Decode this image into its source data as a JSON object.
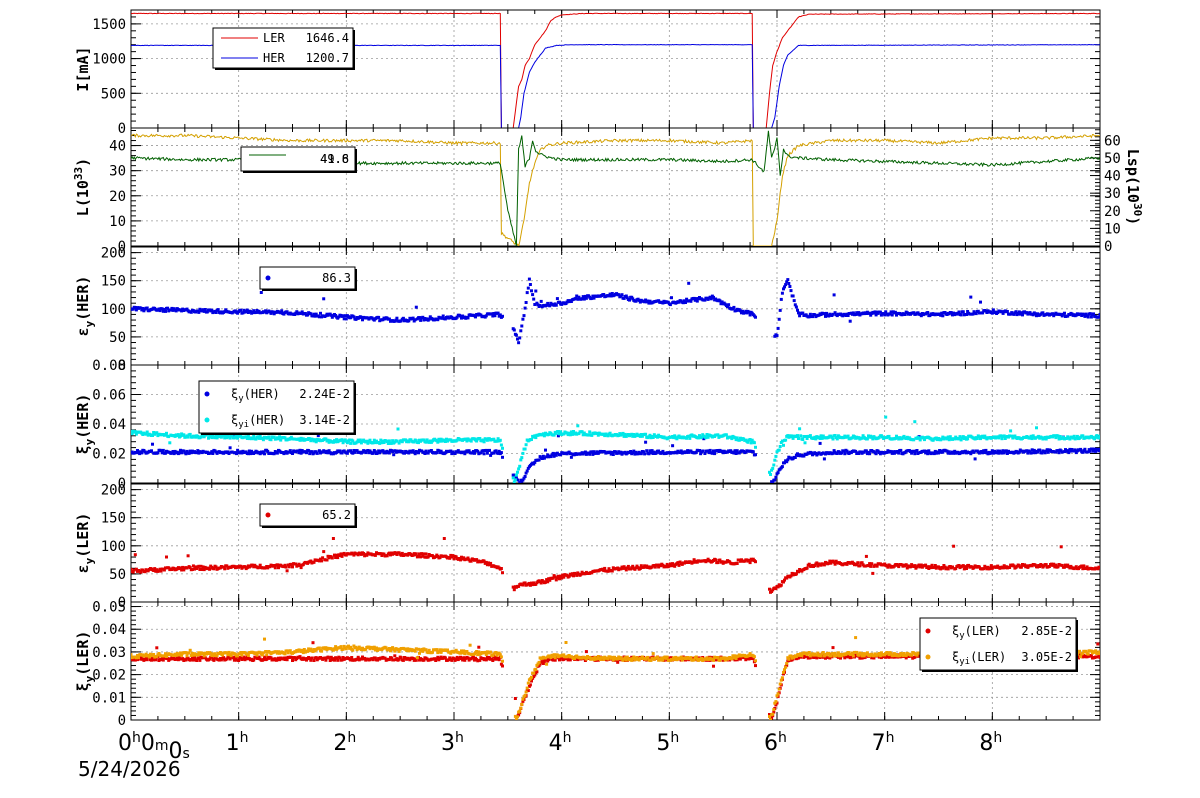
{
  "chart_data": {
    "type": "line",
    "date": "5/24/2026",
    "x_unit": "hours",
    "x_ticks": [
      {
        "value": 0,
        "main": "0",
        "parts": [
          [
            "h",
            "0"
          ],
          [
            "m",
            "0"
          ],
          [
            "s",
            ""
          ]
        ]
      },
      {
        "value": 1,
        "main": "1",
        "parts": [
          [
            "h",
            ""
          ]
        ]
      },
      {
        "value": 2,
        "main": "2",
        "parts": [
          [
            "h",
            ""
          ]
        ]
      },
      {
        "value": 3,
        "main": "3",
        "parts": [
          [
            "h",
            ""
          ]
        ]
      },
      {
        "value": 4,
        "main": "4",
        "parts": [
          [
            "h",
            ""
          ]
        ]
      },
      {
        "value": 5,
        "main": "5",
        "parts": [
          [
            "h",
            ""
          ]
        ]
      },
      {
        "value": 6,
        "main": "6",
        "parts": [
          [
            "h",
            ""
          ]
        ]
      },
      {
        "value": 7,
        "main": "7",
        "parts": [
          [
            "h",
            ""
          ]
        ]
      },
      {
        "value": 8,
        "main": "8",
        "parts": [
          [
            "h",
            ""
          ]
        ]
      }
    ],
    "xlim": [
      0,
      9.0
    ],
    "panels": [
      {
        "id": "current",
        "ylabel": "I[mA]",
        "ylim": [
          0,
          1700
        ],
        "yticks": [
          0,
          500,
          1000,
          1500
        ],
        "style": "line",
        "legend": {
          "position": "top-left",
          "entries": [
            {
              "name": "LER",
              "value": "1646.4",
              "color": "#e00000"
            },
            {
              "name": "HER",
              "value": "1200.7",
              "color": "#0000e0"
            }
          ]
        },
        "series": [
          {
            "name": "LER",
            "color": "#e00000",
            "x": [
              0,
              3.43,
              3.44,
              3.46,
              3.55,
              3.6,
              3.63,
              3.66,
              3.7,
              3.75,
              3.8,
              3.85,
              3.9,
              3.95,
              4.0,
              4.2,
              5.77,
              5.78,
              5.8,
              5.9,
              5.93,
              5.96,
              6.0,
              6.05,
              6.1,
              6.15,
              6.2,
              6.3,
              9.0
            ],
            "y": [
              1650,
              1650,
              0,
              0,
              0,
              600,
              700,
              900,
              1000,
              1200,
              1300,
              1400,
              1550,
              1600,
              1630,
              1650,
              1650,
              0,
              0,
              0,
              500,
              900,
              1100,
              1300,
              1400,
              1500,
              1600,
              1640,
              1650
            ]
          },
          {
            "name": "HER",
            "color": "#0000e0",
            "x": [
              0,
              3.43,
              3.44,
              3.46,
              3.6,
              3.62,
              3.65,
              3.7,
              3.75,
              3.8,
              3.85,
              3.95,
              4.1,
              5.77,
              5.78,
              5.8,
              5.95,
              5.98,
              6.02,
              6.06,
              6.1,
              6.2,
              9.0
            ],
            "y": [
              1190,
              1190,
              0,
              0,
              0,
              150,
              500,
              800,
              950,
              1050,
              1150,
              1190,
              1200,
              1200,
              0,
              0,
              0,
              150,
              600,
              900,
              1050,
              1190,
              1200
            ]
          }
        ]
      },
      {
        "id": "luminosity",
        "ylabel": "L(10",
        "ylabel_sup": "33",
        "ylabel_end": ")",
        "ylim": [
          0,
          47
        ],
        "yticks": [
          0,
          10,
          20,
          30,
          40
        ],
        "ylabel2": "Lsp(10",
        "ylabel2_sup": "30",
        "ylabel2_end": ")",
        "ylim2": [
          0,
          67
        ],
        "yticks2": [
          0,
          10,
          20,
          30,
          40,
          50,
          60
        ],
        "style": "line",
        "legend": {
          "position": "top-left",
          "entries": [
            {
              "name": "",
              "value": "41.8",
              "color": "#d4a000"
            },
            {
              "name": "",
              "value": "49.6",
              "color": "#006000"
            }
          ]
        },
        "series": [
          {
            "name": "L",
            "color": "#d4a000",
            "axis": "left",
            "x": [
              0,
              0.5,
              1.0,
              1.5,
              2.0,
              2.5,
              3.0,
              3.43,
              3.44,
              3.6,
              3.65,
              3.7,
              3.75,
              3.8,
              3.85,
              4.0,
              4.5,
              5.0,
              5.5,
              5.77,
              5.78,
              5.95,
              6.0,
              6.05,
              6.1,
              6.2,
              6.5,
              7.0,
              7.5,
              8.0,
              8.5,
              9.0
            ],
            "y": [
              44,
              44,
              43,
              42,
              42,
              42,
              41,
              41,
              5,
              0,
              10,
              25,
              33,
              38,
              40,
              41,
              42,
              42,
              41,
              42,
              0,
              0,
              10,
              28,
              36,
              40,
              42,
              42,
              41,
              43,
              43,
              44
            ]
          },
          {
            "name": "Lsp",
            "color": "#006000",
            "axis": "right",
            "x": [
              0,
              0.5,
              1.0,
              1.5,
              2.0,
              2.5,
              3.0,
              3.43,
              3.5,
              3.58,
              3.6,
              3.63,
              3.66,
              3.7,
              3.73,
              3.76,
              3.8,
              3.9,
              4.0,
              4.5,
              5.0,
              5.5,
              5.77,
              5.88,
              5.92,
              5.95,
              5.98,
              6.0,
              6.03,
              6.06,
              6.1,
              6.2,
              6.5,
              7.0,
              7.5,
              8.0,
              8.5,
              9.0
            ],
            "y": [
              50,
              49,
              49,
              48,
              47,
              47,
              47,
              47,
              20,
              0,
              55,
              62,
              45,
              50,
              60,
              54,
              52,
              50,
              49,
              49,
              49,
              48,
              49,
              42,
              65,
              50,
              55,
              62,
              40,
              55,
              51,
              50,
              49,
              48,
              47,
              46,
              48,
              50
            ]
          }
        ]
      },
      {
        "id": "eps_her",
        "ylabel": "ε",
        "ylabel_sub": "y",
        "ylabel_end": "(HER)",
        "ylim": [
          0,
          210
        ],
        "yticks": [
          0,
          50,
          100,
          150,
          200
        ],
        "style": "scatter",
        "legend": {
          "position": "top-left",
          "entries": [
            {
              "name": "",
              "value": "86.3",
              "color": "#0000e0"
            }
          ]
        },
        "series": [
          {
            "name": "eps_y HER",
            "color": "#0000e0",
            "gaps": [
              [
                3.45,
                3.55
              ],
              [
                5.8,
                5.98
              ]
            ],
            "x": [
              0,
              0.5,
              1.0,
              1.5,
              2.0,
              2.5,
              3.0,
              3.43,
              3.56,
              3.6,
              3.65,
              3.7,
              3.75,
              3.8,
              4.0,
              4.2,
              4.5,
              4.7,
              5.0,
              5.2,
              5.4,
              5.6,
              5.78,
              6.0,
              6.05,
              6.1,
              6.15,
              6.2,
              6.3,
              6.5,
              7.0,
              7.5,
              8.0,
              8.5,
              9.0
            ],
            "y": [
              100,
              97,
              95,
              93,
              85,
              80,
              85,
              90,
              60,
              40,
              90,
              150,
              110,
              105,
              110,
              120,
              125,
              115,
              110,
              115,
              120,
              100,
              90,
              50,
              130,
              150,
              120,
              90,
              88,
              90,
              92,
              90,
              95,
              90,
              88
            ]
          }
        ]
      },
      {
        "id": "xi_her",
        "ylabel": "ξ",
        "ylabel_sub": "y",
        "ylabel_end": "(HER)",
        "ylim": [
          0,
          0.08
        ],
        "yticks": [
          0,
          0.02,
          0.04,
          0.06,
          0.08
        ],
        "ytick_labels": [
          "0",
          "0.02",
          "0.04",
          "0.06",
          "0.08"
        ],
        "style": "scatter",
        "legend": {
          "position": "top-left",
          "entries": [
            {
              "name": "ξ",
              "sub": "y",
              "tail": "(HER)",
              "value": "2.24E-2",
              "color": "#0000e0"
            },
            {
              "name": "ξ",
              "sub": "yi",
              "tail": "(HER)",
              "value": "3.14E-2",
              "color": "#00e8e8"
            }
          ]
        },
        "series": [
          {
            "name": "xi_y HER",
            "color": "#0000e0",
            "gaps": [
              [
                3.45,
                3.55
              ],
              [
                5.8,
                5.95
              ]
            ],
            "x": [
              0,
              1.0,
              2.0,
              3.0,
              3.43,
              3.6,
              3.65,
              3.7,
              3.75,
              3.8,
              3.9,
              4.0,
              5.0,
              5.78,
              5.96,
              6.0,
              6.05,
              6.1,
              6.2,
              6.5,
              7.0,
              8.0,
              9.0
            ],
            "y": [
              0.021,
              0.021,
              0.021,
              0.021,
              0.021,
              0.0,
              0.004,
              0.01,
              0.014,
              0.017,
              0.019,
              0.02,
              0.021,
              0.021,
              0.0,
              0.006,
              0.012,
              0.016,
              0.019,
              0.021,
              0.021,
              0.021,
              0.022
            ]
          },
          {
            "name": "xi_yi HER",
            "color": "#00e8e8",
            "gaps": [
              [
                3.45,
                3.55
              ],
              [
                5.8,
                5.93
              ]
            ],
            "x": [
              0,
              0.5,
              1.0,
              1.5,
              2.0,
              2.5,
              3.0,
              3.43,
              3.56,
              3.6,
              3.65,
              3.7,
              3.8,
              4.0,
              4.5,
              5.0,
              5.5,
              5.78,
              5.94,
              6.0,
              6.05,
              6.1,
              6.3,
              6.5,
              7.0,
              7.5,
              8.0,
              8.5,
              9.0
            ],
            "y": [
              0.034,
              0.032,
              0.031,
              0.03,
              0.028,
              0.028,
              0.029,
              0.029,
              0.0,
              0.01,
              0.022,
              0.03,
              0.033,
              0.034,
              0.033,
              0.031,
              0.032,
              0.028,
              0.005,
              0.02,
              0.028,
              0.031,
              0.031,
              0.031,
              0.031,
              0.03,
              0.031,
              0.031,
              0.031
            ]
          }
        ]
      },
      {
        "id": "eps_ler",
        "ylabel": "ε",
        "ylabel_sub": "y",
        "ylabel_end": "(LER)",
        "ylim": [
          0,
          210
        ],
        "yticks": [
          0,
          50,
          100,
          150,
          200
        ],
        "style": "scatter",
        "legend": {
          "position": "top-left",
          "entries": [
            {
              "name": "",
              "value": "65.2",
              "color": "#e00000"
            }
          ]
        },
        "series": [
          {
            "name": "eps_y LER",
            "color": "#e00000",
            "gaps": [
              [
                3.45,
                3.55
              ],
              [
                5.8,
                5.93
              ]
            ],
            "x": [
              0,
              0.5,
              1.0,
              1.5,
              2.0,
              2.5,
              3.0,
              3.3,
              3.43,
              3.56,
              3.6,
              3.8,
              4.0,
              4.3,
              4.6,
              5.0,
              5.3,
              5.6,
              5.78,
              5.94,
              6.0,
              6.1,
              6.3,
              6.5,
              7.0,
              7.5,
              8.0,
              8.5,
              9.0
            ],
            "y": [
              55,
              60,
              62,
              65,
              85,
              85,
              80,
              70,
              60,
              25,
              30,
              35,
              45,
              55,
              60,
              65,
              75,
              70,
              78,
              20,
              25,
              45,
              65,
              70,
              65,
              62,
              62,
              65,
              60
            ]
          }
        ]
      },
      {
        "id": "xi_ler",
        "ylabel": "ξ",
        "ylabel_sub": "y",
        "ylabel_end": "(LER)",
        "ylim": [
          0,
          0.052
        ],
        "yticks": [
          0,
          0.01,
          0.02,
          0.03,
          0.04,
          0.05
        ],
        "ytick_labels": [
          "0",
          "0.01",
          "0.02",
          "0.03",
          "0.04",
          "0.05"
        ],
        "style": "scatter",
        "legend": {
          "position": "top-right",
          "entries": [
            {
              "name": "ξ",
              "sub": "y",
              "tail": "(LER)",
              "value": "2.85E-2",
              "color": "#e00000"
            },
            {
              "name": "ξ",
              "sub": "yi",
              "tail": "(LER)",
              "value": "3.05E-2",
              "color": "#f0a000"
            }
          ]
        },
        "series": [
          {
            "name": "xi_y LER",
            "color": "#e00000",
            "gaps": [
              [
                3.45,
                3.57
              ],
              [
                5.8,
                5.93
              ]
            ],
            "x": [
              0,
              1.0,
              2.0,
              3.0,
              3.43,
              3.58,
              3.62,
              3.7,
              3.75,
              3.8,
              3.9,
              4.0,
              5.0,
              5.78,
              5.94,
              6.0,
              6.05,
              6.1,
              6.2,
              7.0,
              8.0,
              9.0
            ],
            "y": [
              0.027,
              0.027,
              0.027,
              0.027,
              0.027,
              0.0,
              0.005,
              0.015,
              0.02,
              0.025,
              0.027,
              0.027,
              0.027,
              0.027,
              0.0,
              0.008,
              0.018,
              0.026,
              0.028,
              0.028,
              0.028,
              0.028
            ]
          },
          {
            "name": "xi_yi LER",
            "color": "#f0a000",
            "gaps": [
              [
                3.45,
                3.57
              ],
              [
                5.8,
                5.93
              ]
            ],
            "x": [
              0,
              0.5,
              1.0,
              1.5,
              2.0,
              2.5,
              3.0,
              3.43,
              3.58,
              3.62,
              3.7,
              3.75,
              3.8,
              3.9,
              4.0,
              4.5,
              5.0,
              5.5,
              5.78,
              5.94,
              6.0,
              6.05,
              6.1,
              6.2,
              6.5,
              7.0,
              7.5,
              8.0,
              8.5,
              9.0
            ],
            "y": [
              0.028,
              0.029,
              0.029,
              0.03,
              0.032,
              0.031,
              0.03,
              0.029,
              0.0,
              0.006,
              0.017,
              0.022,
              0.027,
              0.028,
              0.028,
              0.027,
              0.027,
              0.027,
              0.029,
              0.0,
              0.01,
              0.019,
              0.027,
              0.029,
              0.029,
              0.029,
              0.029,
              0.029,
              0.029,
              0.03
            ]
          }
        ]
      }
    ]
  }
}
